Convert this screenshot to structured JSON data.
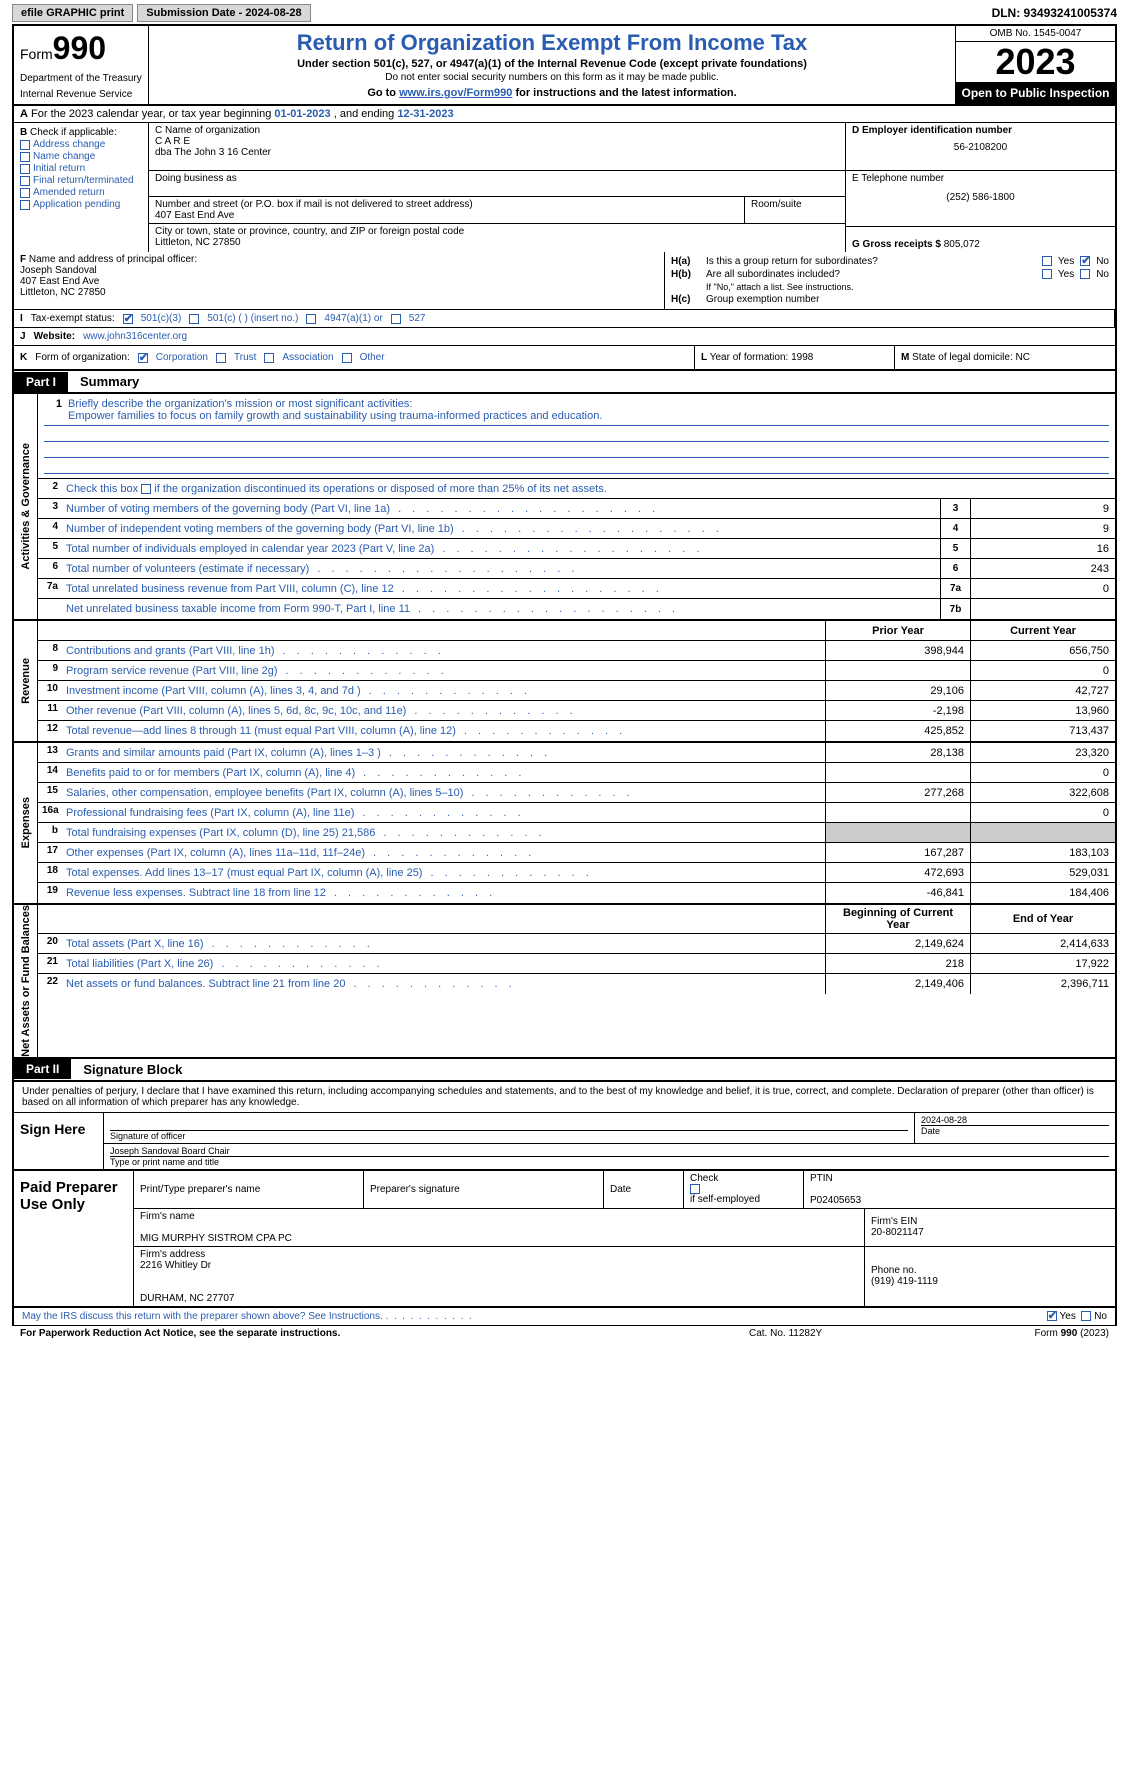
{
  "topbar": {
    "efile": "efile GRAPHIC print",
    "subdate_label": "Submission Date - 2024-08-28",
    "dln": "DLN: 93493241005374"
  },
  "header": {
    "form_prefix": "Form",
    "form_num": "990",
    "dept": "Department of the Treasury",
    "irs": "Internal Revenue Service",
    "title": "Return of Organization Exempt From Income Tax",
    "sub": "Under section 501(c), 527, or 4947(a)(1) of the Internal Revenue Code (except private foundations)",
    "sub2": "Do not enter social security numbers on this form as it may be made public.",
    "sub3_pre": "Go to ",
    "sub3_link": "www.irs.gov/Form990",
    "sub3_post": " for instructions and the latest information.",
    "omb": "OMB No. 1545-0047",
    "year": "2023",
    "open": "Open to Public Inspection"
  },
  "row_a": {
    "label": "A",
    "text_pre": "For the 2023 calendar year, or tax year beginning ",
    "begin": "01-01-2023",
    "mid": " , and ending ",
    "end": "12-31-2023"
  },
  "col_b": {
    "label": "B",
    "check_label": "Check if applicable:",
    "items": [
      "Address change",
      "Name change",
      "Initial return",
      "Final return/terminated",
      "Amended return",
      "Application pending"
    ]
  },
  "col_c": {
    "name_label": "C Name of organization",
    "name": "C A R E",
    "dba": "dba The John 3 16 Center",
    "dba_label": "Doing business as",
    "addr_label": "Number and street (or P.O. box if mail is not delivered to street address)",
    "room_label": "Room/suite",
    "addr": "407 East End Ave",
    "city_label": "City or town, state or province, country, and ZIP or foreign postal code",
    "city": "Littleton, NC  27850"
  },
  "col_d": {
    "ein_label": "D Employer identification number",
    "ein": "56-2108200",
    "phone_label": "E Telephone number",
    "phone": "(252) 586-1800",
    "gross_label": "G Gross receipts $",
    "gross": "805,072"
  },
  "col_f": {
    "label": "F",
    "text": "Name and address of principal officer:",
    "name": "Joseph Sandoval",
    "addr1": "407 East End Ave",
    "addr2": "Littleton, NC  27850"
  },
  "col_h": {
    "ha_label": "H(a)",
    "ha_text": "Is this a group return for subordinates?",
    "hb_label": "H(b)",
    "hb_text": "Are all subordinates included?",
    "hb_note": "If \"No,\" attach a list. See instructions.",
    "hc_label": "H(c)",
    "hc_text": "Group exemption number",
    "yes": "Yes",
    "no": "No"
  },
  "row_i": {
    "label": "I",
    "text": "Tax-exempt status:",
    "opts": [
      "501(c)(3)",
      "501(c) (  ) (insert no.)",
      "4947(a)(1) or",
      "527"
    ]
  },
  "row_j": {
    "label": "J",
    "text": "Website:",
    "val": "www.john316center.org"
  },
  "row_k": {
    "label": "K",
    "text": "Form of organization:",
    "opts": [
      "Corporation",
      "Trust",
      "Association",
      "Other"
    ]
  },
  "row_l": {
    "label": "L",
    "text": "Year of formation:",
    "val": "1998"
  },
  "row_m": {
    "label": "M",
    "text": "State of legal domicile:",
    "val": "NC"
  },
  "part1": {
    "tag": "Part I",
    "title": "Summary"
  },
  "mission": {
    "num": "1",
    "label": "Briefly describe the organization's mission or most significant activities:",
    "text": "Empower families to focus on family growth and sustainability using trauma-informed practices and education."
  },
  "line2": {
    "num": "2",
    "text": "Check this box",
    "text2": "if the organization discontinued its operations or disposed of more than 25% of its net assets."
  },
  "gov_lines": [
    {
      "num": "3",
      "desc": "Number of voting members of the governing body (Part VI, line 1a)",
      "box": "3",
      "val": "9"
    },
    {
      "num": "4",
      "desc": "Number of independent voting members of the governing body (Part VI, line 1b)",
      "box": "4",
      "val": "9"
    },
    {
      "num": "5",
      "desc": "Total number of individuals employed in calendar year 2023 (Part V, line 2a)",
      "box": "5",
      "val": "16"
    },
    {
      "num": "6",
      "desc": "Total number of volunteers (estimate if necessary)",
      "box": "6",
      "val": "243"
    },
    {
      "num": "7a",
      "desc": "Total unrelated business revenue from Part VIII, column (C), line 12",
      "box": "7a",
      "val": "0"
    },
    {
      "num": "",
      "desc": "Net unrelated business taxable income from Form 990-T, Part I, line 11",
      "box": "7b",
      "val": ""
    }
  ],
  "rev_hdr": {
    "prior": "Prior Year",
    "curr": "Current Year"
  },
  "rev_lines": [
    {
      "num": "8",
      "desc": "Contributions and grants (Part VIII, line 1h)",
      "prior": "398,944",
      "curr": "656,750"
    },
    {
      "num": "9",
      "desc": "Program service revenue (Part VIII, line 2g)",
      "prior": "",
      "curr": "0"
    },
    {
      "num": "10",
      "desc": "Investment income (Part VIII, column (A), lines 3, 4, and 7d )",
      "prior": "29,106",
      "curr": "42,727"
    },
    {
      "num": "11",
      "desc": "Other revenue (Part VIII, column (A), lines 5, 6d, 8c, 9c, 10c, and 11e)",
      "prior": "-2,198",
      "curr": "13,960"
    },
    {
      "num": "12",
      "desc": "Total revenue—add lines 8 through 11 (must equal Part VIII, column (A), line 12)",
      "prior": "425,852",
      "curr": "713,437"
    }
  ],
  "exp_lines": [
    {
      "num": "13",
      "desc": "Grants and similar amounts paid (Part IX, column (A), lines 1–3 )",
      "prior": "28,138",
      "curr": "23,320"
    },
    {
      "num": "14",
      "desc": "Benefits paid to or for members (Part IX, column (A), line 4)",
      "prior": "",
      "curr": "0"
    },
    {
      "num": "15",
      "desc": "Salaries, other compensation, employee benefits (Part IX, column (A), lines 5–10)",
      "prior": "277,268",
      "curr": "322,608"
    },
    {
      "num": "16a",
      "desc": "Professional fundraising fees (Part IX, column (A), line 11e)",
      "prior": "",
      "curr": "0"
    },
    {
      "num": "b",
      "desc": "Total fundraising expenses (Part IX, column (D), line 25) 21,586",
      "prior": "grey",
      "curr": "grey"
    },
    {
      "num": "17",
      "desc": "Other expenses (Part IX, column (A), lines 11a–11d, 11f–24e)",
      "prior": "167,287",
      "curr": "183,103"
    },
    {
      "num": "18",
      "desc": "Total expenses. Add lines 13–17 (must equal Part IX, column (A), line 25)",
      "prior": "472,693",
      "curr": "529,031"
    },
    {
      "num": "19",
      "desc": "Revenue less expenses. Subtract line 18 from line 12",
      "prior": "-46,841",
      "curr": "184,406"
    }
  ],
  "net_hdr": {
    "prior": "Beginning of Current Year",
    "curr": "End of Year"
  },
  "net_lines": [
    {
      "num": "20",
      "desc": "Total assets (Part X, line 16)",
      "prior": "2,149,624",
      "curr": "2,414,633"
    },
    {
      "num": "21",
      "desc": "Total liabilities (Part X, line 26)",
      "prior": "218",
      "curr": "17,922"
    },
    {
      "num": "22",
      "desc": "Net assets or fund balances. Subtract line 21 from line 20",
      "prior": "2,149,406",
      "curr": "2,396,711"
    }
  ],
  "vlabels": {
    "gov": "Activities & Governance",
    "rev": "Revenue",
    "exp": "Expenses",
    "net": "Net Assets or Fund Balances"
  },
  "part2": {
    "tag": "Part II",
    "title": "Signature Block"
  },
  "sig_text": "Under penalties of perjury, I declare that I have examined this return, including accompanying schedules and statements, and to the best of my knowledge and belief, it is true, correct, and complete. Declaration of preparer (other than officer) is based on all information of which preparer has any knowledge.",
  "sign": {
    "label": "Sign Here",
    "sig_label": "Signature of officer",
    "date_label": "Date",
    "date": "2024-08-28",
    "name": "Joseph Sandoval Board Chair",
    "name_label": "Type or print name and title"
  },
  "prep": {
    "label": "Paid Preparer Use Only",
    "r1": {
      "c1": "Print/Type preparer's name",
      "c2": "Preparer's signature",
      "c3": "Date",
      "c4_pre": "Check",
      "c4_post": "if self-employed",
      "c5_label": "PTIN",
      "c5": "P02405653"
    },
    "r2": {
      "label": "Firm's name",
      "val": "MIG MURPHY SISTROM CPA PC",
      "ein_label": "Firm's EIN",
      "ein": "20-8021147"
    },
    "r3": {
      "label": "Firm's address",
      "val1": "2216 Whitley Dr",
      "val2": "DURHAM, NC  27707",
      "phone_label": "Phone no.",
      "phone": "(919) 419-1119"
    }
  },
  "may": {
    "text": "May the IRS discuss this return with the preparer shown above? See Instructions.",
    "yes": "Yes",
    "no": "No"
  },
  "footer": {
    "left": "For Paperwork Reduction Act Notice, see the separate instructions.",
    "cat": "Cat. No. 11282Y",
    "form": "Form 990 (2023)"
  }
}
